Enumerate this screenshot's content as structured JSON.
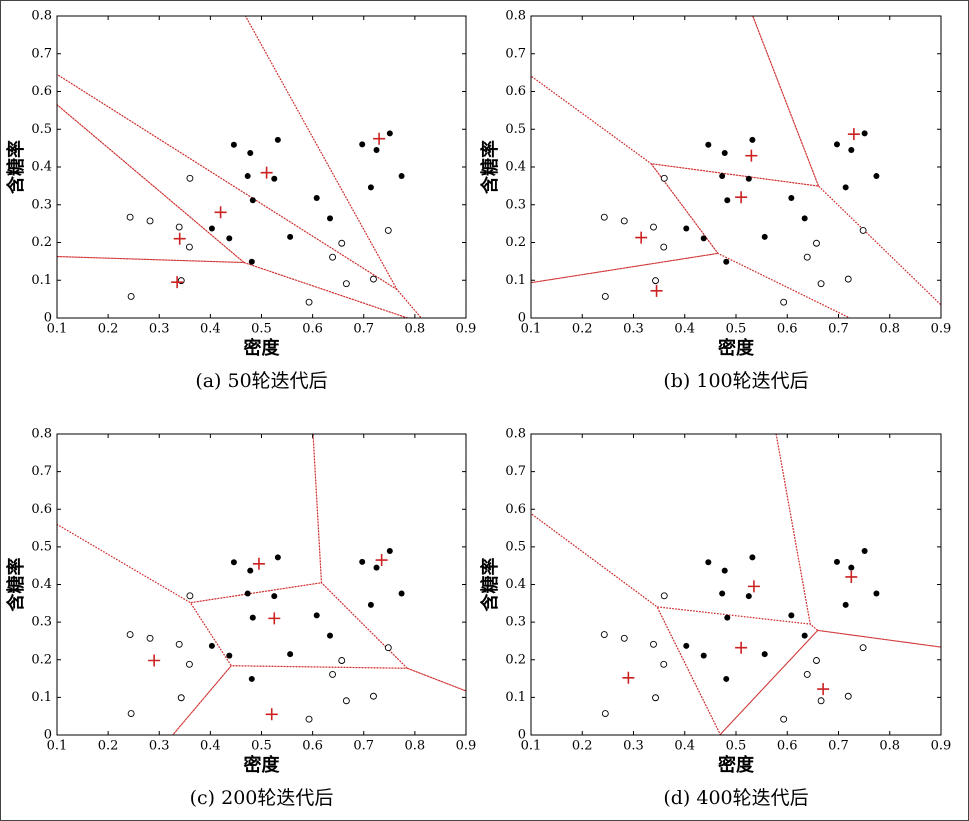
{
  "chart_data": [
    {
      "type": "scatter",
      "title": "(a) 50轮迭代后",
      "xlabel": "密度",
      "ylabel": "含糖率",
      "xlim": [
        0.1,
        0.9
      ],
      "ylim": [
        0,
        0.8
      ],
      "xticks": [
        0.1,
        0.2,
        0.3,
        0.4,
        0.5,
        0.6,
        0.7,
        0.8,
        0.9
      ],
      "yticks": [
        0,
        0.1,
        0.2,
        0.3,
        0.4,
        0.5,
        0.6,
        0.7,
        0.8
      ],
      "voronoi": true,
      "voronoi_color": "#d03030",
      "series": [
        {
          "marker": "filled",
          "color": "#000000",
          "x": [
            0.697,
            0.774,
            0.634,
            0.608,
            0.556,
            0.403,
            0.481,
            0.437,
            0.714,
            0.483,
            0.478,
            0.525,
            0.751,
            0.532,
            0.473,
            0.725,
            0.446
          ],
          "values": [
            0.46,
            0.376,
            0.264,
            0.318,
            0.215,
            0.237,
            0.149,
            0.211,
            0.346,
            0.312,
            0.437,
            0.369,
            0.489,
            0.472,
            0.376,
            0.445,
            0.459
          ]
        },
        {
          "marker": "open",
          "color": "#000000",
          "x": [
            0.666,
            0.243,
            0.245,
            0.343,
            0.639,
            0.657,
            0.36,
            0.593,
            0.719,
            0.359,
            0.339,
            0.282,
            0.748
          ],
          "values": [
            0.091,
            0.267,
            0.057,
            0.099,
            0.161,
            0.198,
            0.37,
            0.042,
            0.103,
            0.188,
            0.241,
            0.257,
            0.232
          ]
        },
        {
          "marker": "plus",
          "color": "#cc2222",
          "x": [
            0.51,
            0.73,
            0.42,
            0.34,
            0.335
          ],
          "values": [
            0.385,
            0.475,
            0.28,
            0.21,
            0.095
          ]
        }
      ]
    },
    {
      "type": "scatter",
      "title": "(b) 100轮迭代后",
      "xlabel": "密度",
      "ylabel": "含糖率",
      "xlim": [
        0.1,
        0.9
      ],
      "ylim": [
        0,
        0.8
      ],
      "xticks": [
        0.1,
        0.2,
        0.3,
        0.4,
        0.5,
        0.6,
        0.7,
        0.8,
        0.9
      ],
      "yticks": [
        0,
        0.1,
        0.2,
        0.3,
        0.4,
        0.5,
        0.6,
        0.7,
        0.8
      ],
      "voronoi": true,
      "voronoi_color": "#d03030",
      "series": [
        {
          "marker": "filled",
          "color": "#000000",
          "x": [
            0.697,
            0.774,
            0.634,
            0.608,
            0.556,
            0.403,
            0.481,
            0.437,
            0.714,
            0.483,
            0.478,
            0.525,
            0.751,
            0.532,
            0.473,
            0.725,
            0.446
          ],
          "values": [
            0.46,
            0.376,
            0.264,
            0.318,
            0.215,
            0.237,
            0.149,
            0.211,
            0.346,
            0.312,
            0.437,
            0.369,
            0.489,
            0.472,
            0.376,
            0.445,
            0.459
          ]
        },
        {
          "marker": "open",
          "color": "#000000",
          "x": [
            0.666,
            0.243,
            0.245,
            0.343,
            0.639,
            0.657,
            0.36,
            0.593,
            0.719,
            0.359,
            0.339,
            0.282,
            0.748
          ],
          "values": [
            0.091,
            0.267,
            0.057,
            0.099,
            0.161,
            0.198,
            0.37,
            0.042,
            0.103,
            0.188,
            0.241,
            0.257,
            0.232
          ]
        },
        {
          "marker": "plus",
          "color": "#cc2222",
          "x": [
            0.53,
            0.73,
            0.51,
            0.315,
            0.345
          ],
          "values": [
            0.43,
            0.487,
            0.32,
            0.213,
            0.072
          ]
        }
      ]
    },
    {
      "type": "scatter",
      "title": "(c) 200轮迭代后",
      "xlabel": "密度",
      "ylabel": "含糖率",
      "xlim": [
        0.1,
        0.9
      ],
      "ylim": [
        0,
        0.8
      ],
      "xticks": [
        0.1,
        0.2,
        0.3,
        0.4,
        0.5,
        0.6,
        0.7,
        0.8,
        0.9
      ],
      "yticks": [
        0,
        0.1,
        0.2,
        0.3,
        0.4,
        0.5,
        0.6,
        0.7,
        0.8
      ],
      "voronoi": true,
      "voronoi_color": "#d03030",
      "series": [
        {
          "marker": "filled",
          "color": "#000000",
          "x": [
            0.697,
            0.774,
            0.634,
            0.608,
            0.556,
            0.403,
            0.481,
            0.437,
            0.714,
            0.483,
            0.478,
            0.525,
            0.751,
            0.532,
            0.473,
            0.725,
            0.446
          ],
          "values": [
            0.46,
            0.376,
            0.264,
            0.318,
            0.215,
            0.237,
            0.149,
            0.211,
            0.346,
            0.312,
            0.437,
            0.369,
            0.489,
            0.472,
            0.376,
            0.445,
            0.459
          ]
        },
        {
          "marker": "open",
          "color": "#000000",
          "x": [
            0.666,
            0.243,
            0.245,
            0.343,
            0.639,
            0.657,
            0.36,
            0.593,
            0.719,
            0.359,
            0.339,
            0.282,
            0.748
          ],
          "values": [
            0.091,
            0.267,
            0.057,
            0.099,
            0.161,
            0.198,
            0.37,
            0.042,
            0.103,
            0.188,
            0.241,
            0.257,
            0.232
          ]
        },
        {
          "marker": "plus",
          "color": "#cc2222",
          "x": [
            0.495,
            0.735,
            0.525,
            0.29,
            0.52
          ],
          "values": [
            0.455,
            0.465,
            0.31,
            0.198,
            0.055
          ]
        }
      ]
    },
    {
      "type": "scatter",
      "title": "(d) 400轮迭代后",
      "xlabel": "密度",
      "ylabel": "含糖率",
      "xlim": [
        0.1,
        0.9
      ],
      "ylim": [
        0,
        0.8
      ],
      "xticks": [
        0.1,
        0.2,
        0.3,
        0.4,
        0.5,
        0.6,
        0.7,
        0.8,
        0.9
      ],
      "yticks": [
        0,
        0.1,
        0.2,
        0.3,
        0.4,
        0.5,
        0.6,
        0.7,
        0.8
      ],
      "voronoi": true,
      "voronoi_color": "#d03030",
      "series": [
        {
          "marker": "filled",
          "color": "#000000",
          "x": [
            0.697,
            0.774,
            0.634,
            0.608,
            0.556,
            0.403,
            0.481,
            0.437,
            0.714,
            0.483,
            0.478,
            0.525,
            0.751,
            0.532,
            0.473,
            0.725,
            0.446
          ],
          "values": [
            0.46,
            0.376,
            0.264,
            0.318,
            0.215,
            0.237,
            0.149,
            0.211,
            0.346,
            0.312,
            0.437,
            0.369,
            0.489,
            0.472,
            0.376,
            0.445,
            0.459
          ]
        },
        {
          "marker": "open",
          "color": "#000000",
          "x": [
            0.666,
            0.243,
            0.245,
            0.343,
            0.639,
            0.657,
            0.36,
            0.593,
            0.719,
            0.359,
            0.339,
            0.282,
            0.748
          ],
          "values": [
            0.091,
            0.267,
            0.057,
            0.099,
            0.161,
            0.198,
            0.37,
            0.042,
            0.103,
            0.188,
            0.241,
            0.257,
            0.232
          ]
        },
        {
          "marker": "plus",
          "color": "#cc2222",
          "x": [
            0.535,
            0.725,
            0.51,
            0.29,
            0.67
          ],
          "values": [
            0.395,
            0.42,
            0.232,
            0.152,
            0.122
          ]
        }
      ]
    }
  ]
}
